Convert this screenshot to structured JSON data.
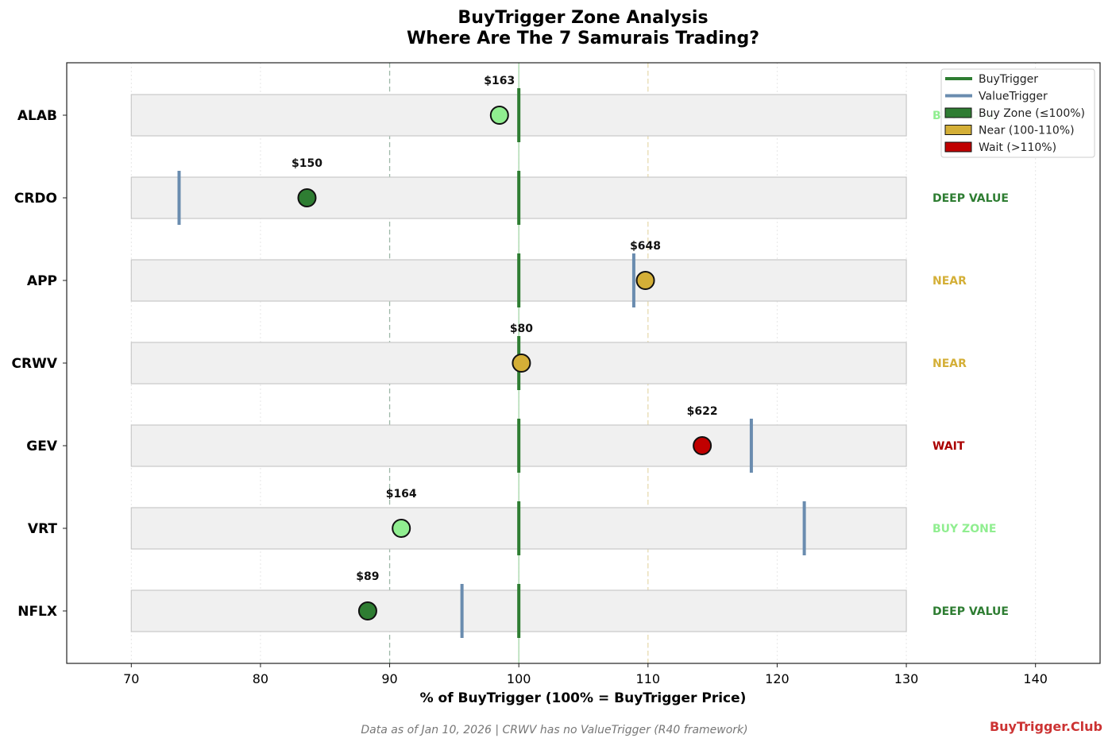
{
  "chart_data": {
    "type": "scatter",
    "title": "BuyTrigger Zone Analysis",
    "subtitle": "Where Are The 7 Samurais Trading?",
    "xlabel": "% of BuyTrigger (100% = BuyTrigger Price)",
    "xlim": [
      65,
      145
    ],
    "x_ticks": [
      70,
      80,
      90,
      100,
      110,
      120,
      130,
      140
    ],
    "range_band": [
      70,
      130
    ],
    "reference_lines": [
      90,
      100,
      110
    ],
    "grid": true,
    "legend_position": "top-right",
    "legend": [
      {
        "label": "BuyTrigger",
        "kind": "line",
        "color": "#2e7d32"
      },
      {
        "label": "ValueTrigger",
        "kind": "line",
        "color": "#6a8caf"
      },
      {
        "label": "Buy Zone (≤100%)",
        "kind": "patch",
        "color": "#2e7d32"
      },
      {
        "label": "Near (100-110%)",
        "kind": "patch",
        "color": "#d4af37"
      },
      {
        "label": "Wait (>110%)",
        "kind": "patch",
        "color": "#c00000"
      }
    ],
    "buytrigger_value": 100,
    "series": [
      {
        "ticker": "ALAB",
        "pct": 98.5,
        "price": "$163",
        "value_trigger": null,
        "status": "BUY ZONE",
        "status_color": "#90ee90",
        "dot_color": "#90ee90"
      },
      {
        "ticker": "CRDO",
        "pct": 83.6,
        "price": "$150",
        "value_trigger": 73.7,
        "status": "DEEP VALUE",
        "status_color": "#2e7d32",
        "dot_color": "#2e7d32"
      },
      {
        "ticker": "APP",
        "pct": 109.8,
        "price": "$648",
        "value_trigger": 108.9,
        "status": "NEAR",
        "status_color": "#d4af37",
        "dot_color": "#d4af37"
      },
      {
        "ticker": "CRWV",
        "pct": 100.2,
        "price": "$80",
        "value_trigger": null,
        "status": "NEAR",
        "status_color": "#d4af37",
        "dot_color": "#d4af37"
      },
      {
        "ticker": "GEV",
        "pct": 114.2,
        "price": "$622",
        "value_trigger": 118.0,
        "status": "WAIT",
        "status_color": "#aa0000",
        "dot_color": "#c00000"
      },
      {
        "ticker": "VRT",
        "pct": 90.9,
        "price": "$164",
        "value_trigger": 122.1,
        "status": "BUY ZONE",
        "status_color": "#90ee90",
        "dot_color": "#90ee90"
      },
      {
        "ticker": "NFLX",
        "pct": 88.3,
        "price": "$89",
        "value_trigger": 95.6,
        "status": "DEEP VALUE",
        "status_color": "#2e7d32",
        "dot_color": "#2e7d32"
      }
    ],
    "footnote": "Data as of Jan 10, 2026 | CRWV has no ValueTrigger (R40 framework)",
    "brand": "BuyTrigger.Club"
  }
}
